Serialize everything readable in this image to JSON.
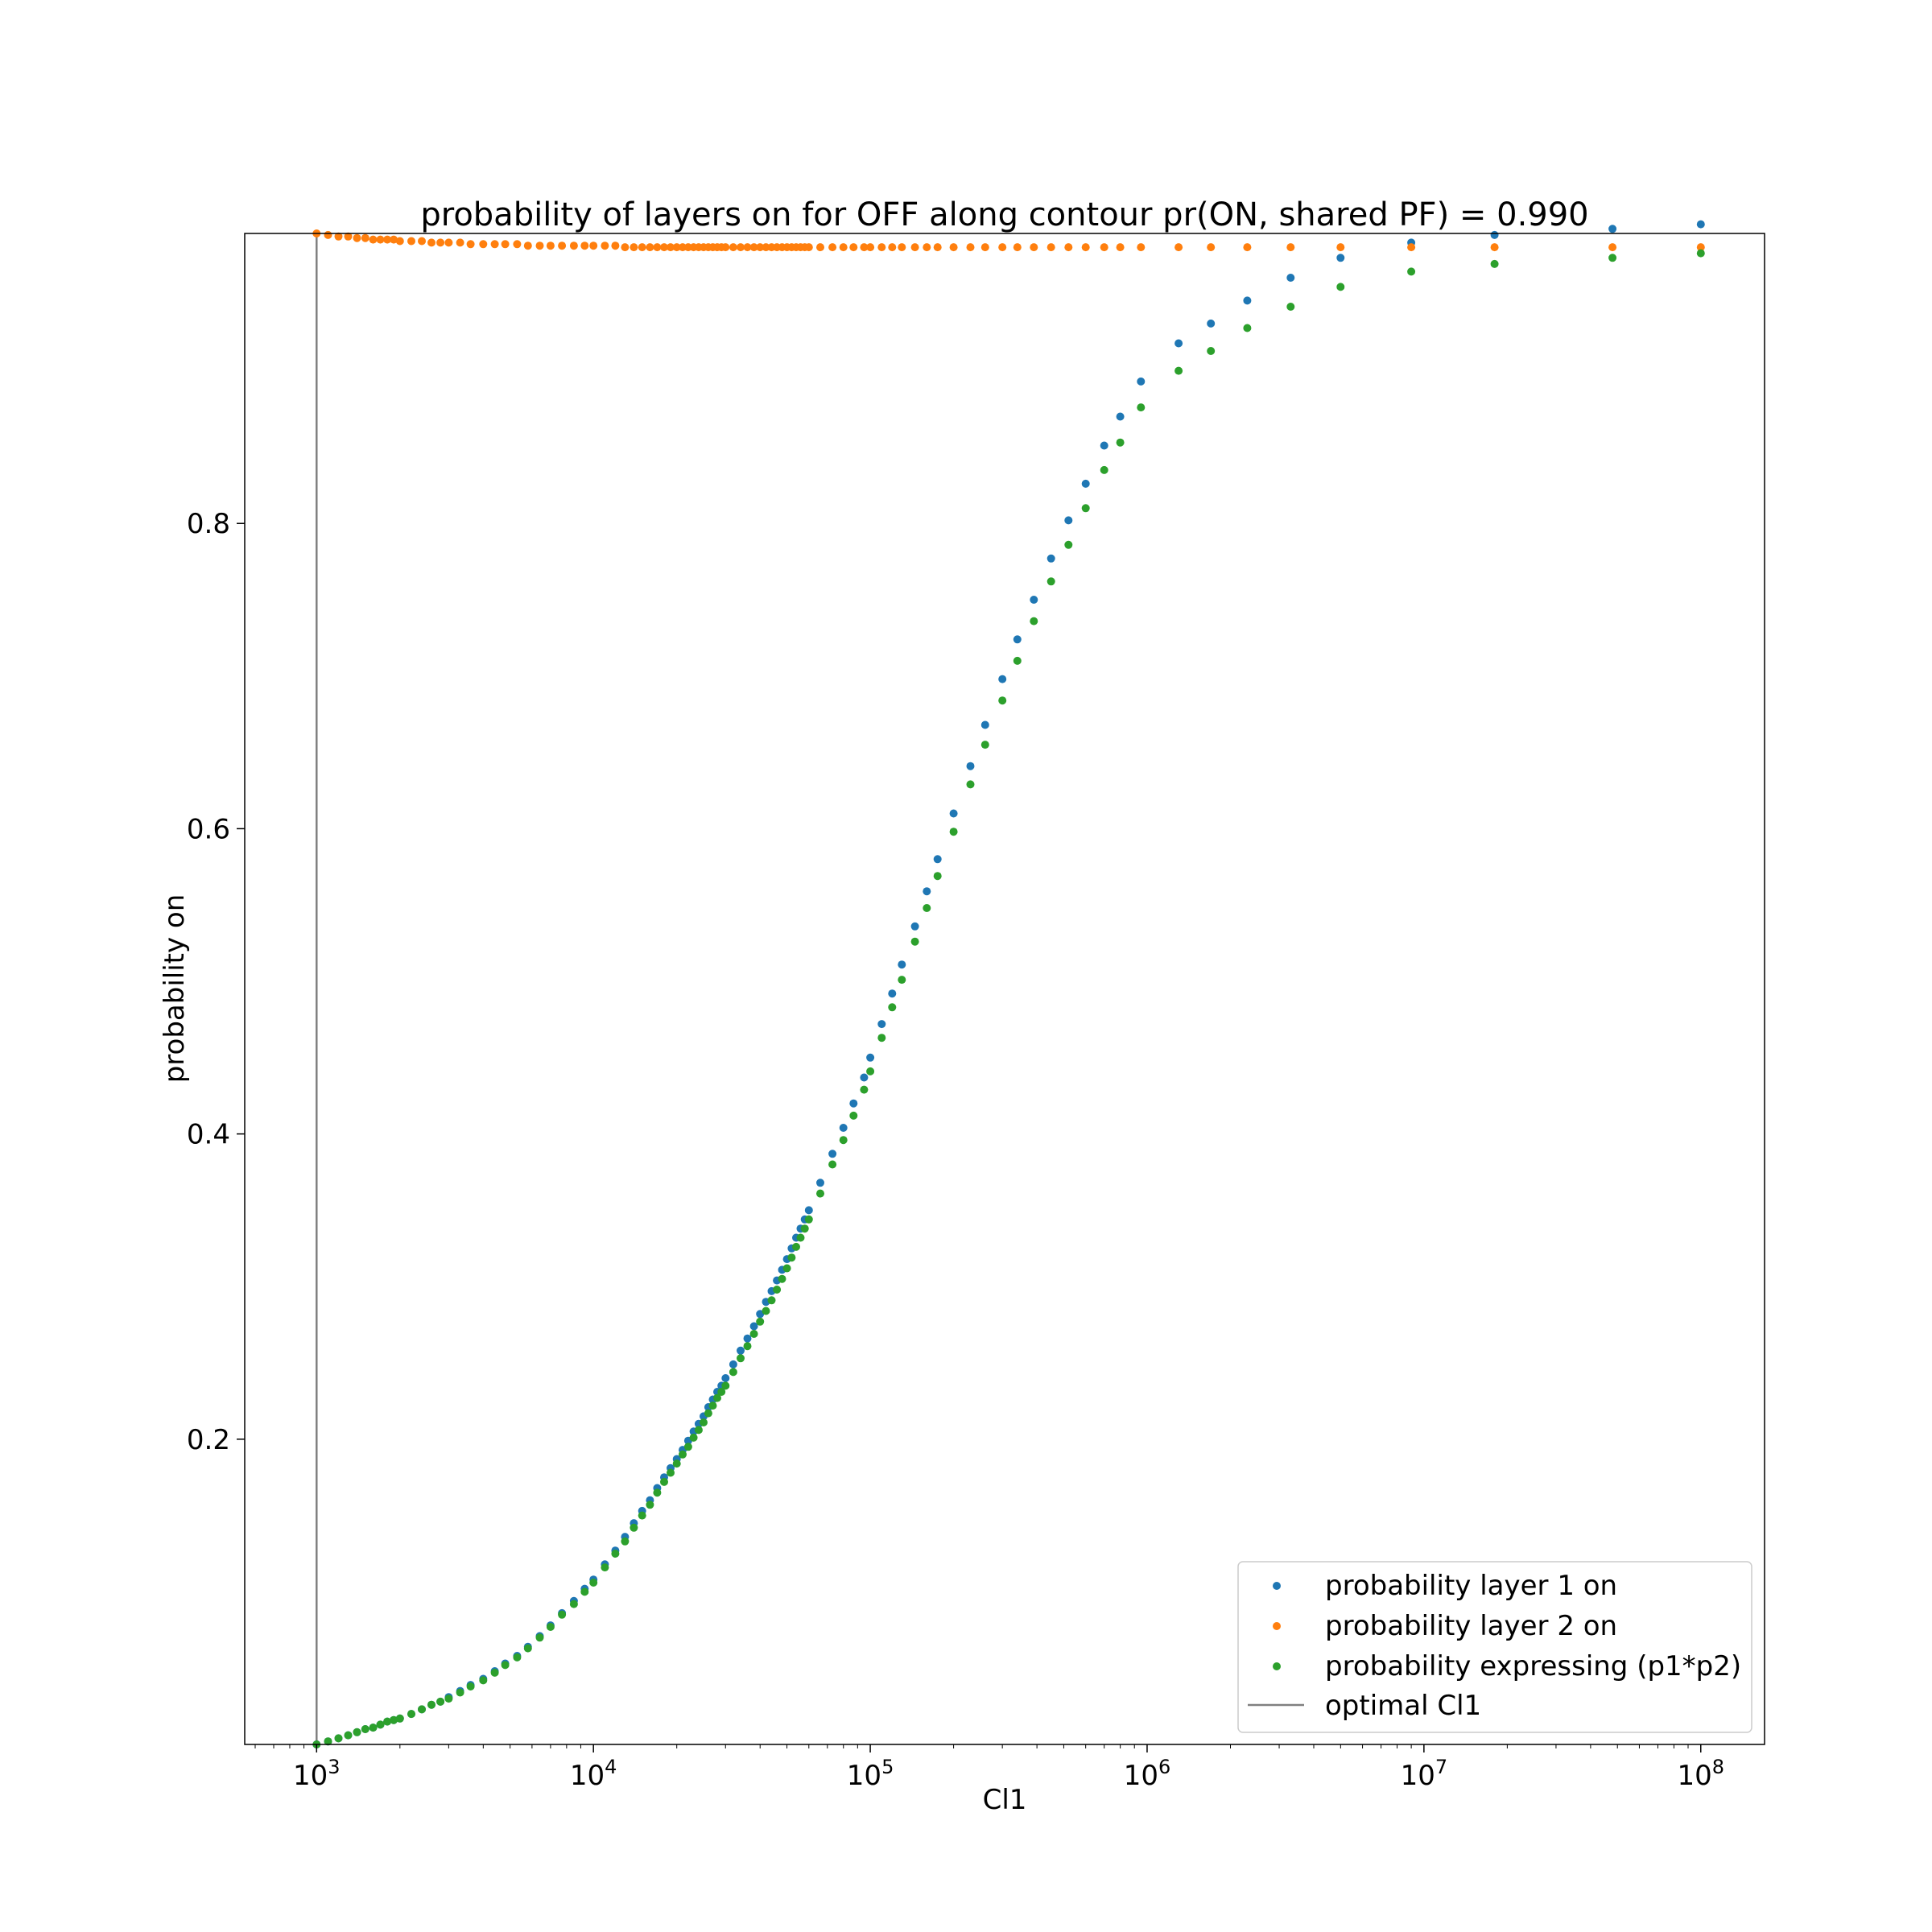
{
  "chart_data": {
    "type": "scatter",
    "title": "probability of layers on for OFF along contour pr(ON, shared PF) = 0.990",
    "xlabel": "Cl1",
    "ylabel": "probability on",
    "x_scale": "log",
    "xlim": [
      550,
      170000000
    ],
    "ylim": [
      0.0,
      0.99
    ],
    "x_ticks": [
      {
        "value": 1000,
        "base": "10",
        "exp": "3"
      },
      {
        "value": 10000,
        "base": "10",
        "exp": "4"
      },
      {
        "value": 100000,
        "base": "10",
        "exp": "5"
      },
      {
        "value": 1000000,
        "base": "10",
        "exp": "6"
      },
      {
        "value": 10000000,
        "base": "10",
        "exp": "7"
      },
      {
        "value": 100000000,
        "base": "10",
        "exp": "8"
      }
    ],
    "y_ticks": [
      {
        "value": 0.2,
        "label": "0.2"
      },
      {
        "value": 0.4,
        "label": "0.4"
      },
      {
        "value": 0.6,
        "label": "0.6"
      },
      {
        "value": 0.8,
        "label": "0.8"
      }
    ],
    "grid": false,
    "legend_position": "bottom-right",
    "x": [
      1000,
      1100,
      1200,
      1300,
      1400,
      1500,
      1600,
      1700,
      1800,
      1900,
      2000,
      2200,
      2400,
      2600,
      2800,
      3000,
      3300,
      3600,
      4000,
      4400,
      4800,
      5300,
      5800,
      6400,
      7000,
      7700,
      8500,
      9300,
      10000,
      11000,
      12000,
      13000,
      14000,
      15000,
      16000,
      17000,
      18000,
      19000,
      20000,
      21000,
      22000,
      23000,
      24000,
      25000,
      26000,
      27000,
      28000,
      29000,
      30000,
      32000,
      34000,
      36000,
      38000,
      40000,
      42000,
      44000,
      46000,
      48000,
      50000,
      52000,
      54000,
      56000,
      58000,
      60000,
      66000,
      73000,
      80000,
      87000,
      95000,
      100000,
      110000,
      120000,
      130000,
      145000,
      160000,
      175000,
      200000,
      230000,
      260000,
      300000,
      340000,
      390000,
      450000,
      520000,
      600000,
      700000,
      800000,
      950000,
      1300000,
      1700000,
      2300000,
      3300000,
      5000000,
      9000000,
      18000000,
      48000000,
      100000000
    ],
    "series": [
      {
        "name": "probability layer 1 on",
        "color": "#1f77b4",
        "values": [
          0.0,
          0.002,
          0.004,
          0.006,
          0.008,
          0.01,
          0.011,
          0.013,
          0.015,
          0.016,
          0.017,
          0.02,
          0.023,
          0.026,
          0.028,
          0.031,
          0.035,
          0.039,
          0.043,
          0.048,
          0.053,
          0.058,
          0.064,
          0.071,
          0.078,
          0.086,
          0.094,
          0.102,
          0.108,
          0.118,
          0.127,
          0.136,
          0.145,
          0.153,
          0.16,
          0.168,
          0.175,
          0.181,
          0.187,
          0.193,
          0.199,
          0.205,
          0.21,
          0.215,
          0.221,
          0.226,
          0.231,
          0.235,
          0.24,
          0.249,
          0.258,
          0.266,
          0.274,
          0.282,
          0.29,
          0.297,
          0.304,
          0.311,
          0.318,
          0.325,
          0.332,
          0.338,
          0.344,
          0.35,
          0.368,
          0.387,
          0.404,
          0.42,
          0.437,
          0.45,
          0.472,
          0.492,
          0.511,
          0.536,
          0.559,
          0.58,
          0.61,
          0.641,
          0.668,
          0.698,
          0.724,
          0.75,
          0.777,
          0.802,
          0.826,
          0.851,
          0.87,
          0.893,
          0.918,
          0.931,
          0.946,
          0.961,
          0.974,
          0.984,
          0.989,
          0.993,
          0.996
        ]
      },
      {
        "name": "probability layer 2 on",
        "color": "#ff7f0e",
        "values": [
          0.99,
          0.989,
          0.988,
          0.988,
          0.987,
          0.987,
          0.986,
          0.986,
          0.986,
          0.986,
          0.985,
          0.985,
          0.985,
          0.984,
          0.984,
          0.984,
          0.984,
          0.983,
          0.983,
          0.983,
          0.983,
          0.983,
          0.982,
          0.982,
          0.982,
          0.982,
          0.982,
          0.982,
          0.982,
          0.982,
          0.982,
          0.981,
          0.981,
          0.981,
          0.981,
          0.981,
          0.981,
          0.981,
          0.981,
          0.981,
          0.981,
          0.981,
          0.981,
          0.981,
          0.981,
          0.981,
          0.981,
          0.981,
          0.981,
          0.981,
          0.981,
          0.981,
          0.981,
          0.981,
          0.981,
          0.981,
          0.981,
          0.981,
          0.981,
          0.981,
          0.981,
          0.981,
          0.981,
          0.981,
          0.981,
          0.981,
          0.981,
          0.981,
          0.981,
          0.981,
          0.981,
          0.981,
          0.981,
          0.981,
          0.981,
          0.981,
          0.981,
          0.981,
          0.981,
          0.981,
          0.981,
          0.981,
          0.981,
          0.981,
          0.981,
          0.981,
          0.981,
          0.981,
          0.981,
          0.981,
          0.981,
          0.981,
          0.981,
          0.981,
          0.981,
          0.981,
          0.981
        ]
      },
      {
        "name": "probability expressing (p1*p2)",
        "color": "#2ca02c",
        "values": [
          0.0,
          0.002,
          0.004,
          0.006,
          0.008,
          0.01,
          0.011,
          0.013,
          0.015,
          0.016,
          0.017,
          0.02,
          0.023,
          0.026,
          0.028,
          0.03,
          0.034,
          0.038,
          0.042,
          0.047,
          0.052,
          0.057,
          0.063,
          0.07,
          0.077,
          0.085,
          0.092,
          0.1,
          0.106,
          0.116,
          0.125,
          0.133,
          0.142,
          0.15,
          0.157,
          0.165,
          0.172,
          0.178,
          0.184,
          0.19,
          0.195,
          0.201,
          0.206,
          0.211,
          0.217,
          0.222,
          0.227,
          0.231,
          0.235,
          0.244,
          0.253,
          0.261,
          0.269,
          0.277,
          0.284,
          0.291,
          0.298,
          0.305,
          0.312,
          0.319,
          0.326,
          0.332,
          0.338,
          0.344,
          0.361,
          0.38,
          0.396,
          0.412,
          0.429,
          0.441,
          0.463,
          0.483,
          0.501,
          0.526,
          0.548,
          0.569,
          0.598,
          0.629,
          0.655,
          0.684,
          0.71,
          0.736,
          0.762,
          0.786,
          0.81,
          0.835,
          0.853,
          0.876,
          0.9,
          0.913,
          0.928,
          0.942,
          0.955,
          0.965,
          0.97,
          0.974,
          0.977
        ]
      }
    ],
    "vline": {
      "name": "optimal Cl1",
      "x": 1000,
      "color": "#808080"
    }
  }
}
